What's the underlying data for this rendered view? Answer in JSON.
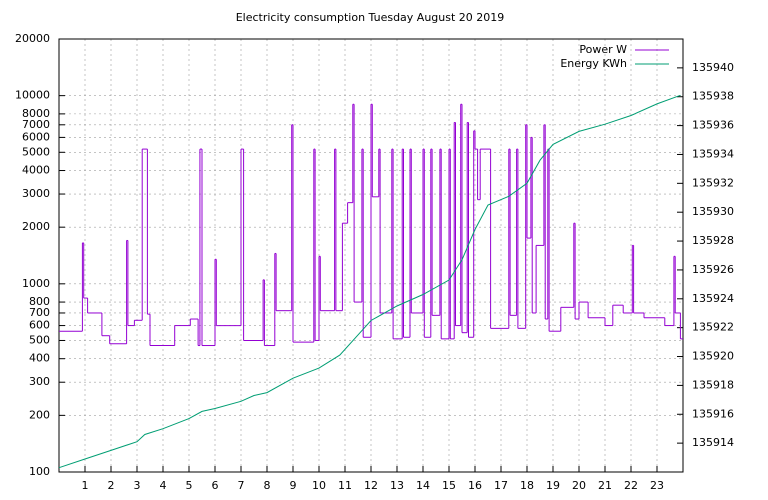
{
  "chart_data": {
    "type": "line",
    "title": "Electricity consumption Tuesday August 20 2019",
    "xlim": [
      0,
      24
    ],
    "xticks": [
      1,
      2,
      3,
      4,
      5,
      6,
      7,
      8,
      9,
      10,
      11,
      12,
      13,
      14,
      15,
      16,
      17,
      18,
      19,
      20,
      21,
      22,
      23
    ],
    "ylim": [
      100,
      20000
    ],
    "ylog": true,
    "yticks": [
      100,
      200,
      300,
      400,
      500,
      600,
      700,
      800,
      1000,
      2000,
      3000,
      4000,
      5000,
      6000,
      7000,
      8000,
      10000,
      20000
    ],
    "y2lim": [
      135912,
      135942
    ],
    "y2ticks": [
      135914,
      135916,
      135918,
      135920,
      135922,
      135924,
      135926,
      135928,
      135930,
      135932,
      135934,
      135936,
      135938,
      135940
    ],
    "grid": true,
    "legend": "top-right",
    "series": [
      {
        "name": "Power W",
        "color": "#9400d3",
        "step": true,
        "x": [
          0,
          0.9,
          0.95,
          1.1,
          1.65,
          1.95,
          2.6,
          2.65,
          2.9,
          3.2,
          3.4,
          3.5,
          4.45,
          5.05,
          5.35,
          5.42,
          5.5,
          6.0,
          6.05,
          7.0,
          7.1,
          7.85,
          7.9,
          8.3,
          8.35,
          8.95,
          9.0,
          9.8,
          9.85,
          10.0,
          10.05,
          10.6,
          10.65,
          10.9,
          11.1,
          11.3,
          11.35,
          11.65,
          11.7,
          12.0,
          12.05,
          12.3,
          12.35,
          12.8,
          12.85,
          13.2,
          13.25,
          13.5,
          13.55,
          14.0,
          14.05,
          14.3,
          14.35,
          14.65,
          14.7,
          15.0,
          15.05,
          15.2,
          15.25,
          15.45,
          15.5,
          15.7,
          15.75,
          15.95,
          16.0,
          16.1,
          16.2,
          16.6,
          17.3,
          17.35,
          17.6,
          17.65,
          17.95,
          18.0,
          18.15,
          18.2,
          18.35,
          18.65,
          18.7,
          18.8,
          18.85,
          19.3,
          19.8,
          19.85,
          20.0,
          20.35,
          21.0,
          21.3,
          21.7,
          22.05,
          22.1,
          22.5,
          23.3,
          23.65,
          23.7,
          23.9
        ],
        "values": [
          560,
          1650,
          840,
          700,
          530,
          480,
          1700,
          600,
          640,
          5200,
          690,
          470,
          600,
          650,
          470,
          5200,
          470,
          1350,
          600,
          5200,
          500,
          1050,
          470,
          1450,
          720,
          7000,
          490,
          5200,
          500,
          1400,
          720,
          5200,
          720,
          2100,
          2700,
          9000,
          800,
          5200,
          520,
          9000,
          2900,
          5200,
          700,
          5200,
          510,
          5200,
          520,
          5200,
          700,
          5200,
          520,
          5200,
          680,
          5200,
          510,
          5200,
          510,
          7200,
          600,
          9000,
          550,
          7200,
          520,
          6500,
          5200,
          2800,
          5200,
          580,
          5200,
          680,
          5200,
          580,
          7000,
          1750,
          6000,
          700,
          1600,
          7000,
          650,
          5200,
          560,
          750,
          2100,
          650,
          800,
          660,
          600,
          770,
          700,
          1600,
          700,
          660,
          600,
          1400,
          700,
          510
        ]
      },
      {
        "name": "Energy KWh",
        "color": "#009e73",
        "axis": "y2",
        "x": [
          0,
          1,
          2,
          3,
          3.3,
          4,
          5,
          5.5,
          6,
          7,
          7.5,
          8,
          9,
          10,
          10.8,
          11.5,
          12,
          13,
          14,
          15,
          15.5,
          16,
          16.5,
          17.3,
          18,
          18.5,
          19,
          20,
          21,
          22,
          23,
          23.9
        ],
        "values": [
          135912.3,
          135912.9,
          135913.5,
          135914.1,
          135914.6,
          135915.0,
          135915.7,
          135916.2,
          135916.4,
          135916.9,
          135917.3,
          135917.5,
          135918.5,
          135919.2,
          135920.1,
          135921.5,
          135922.5,
          135923.5,
          135924.3,
          135925.3,
          135926.7,
          135928.8,
          135930.5,
          135931.1,
          135932.0,
          135933.6,
          135934.7,
          135935.6,
          135936.1,
          135936.7,
          135937.5,
          135938.1
        ]
      }
    ]
  }
}
